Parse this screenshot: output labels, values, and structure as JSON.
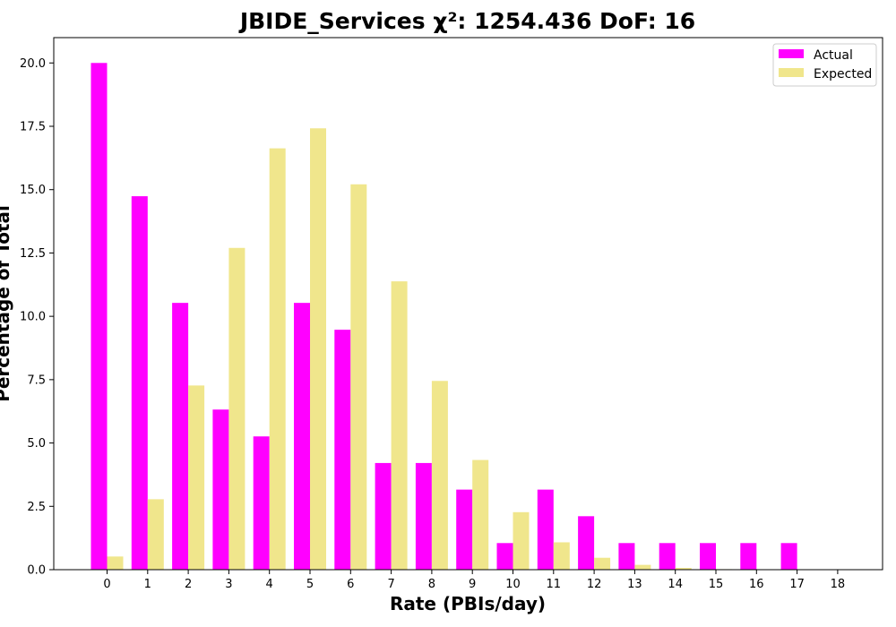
{
  "chart_data": {
    "type": "bar",
    "title": "JBIDE_Services χ²: 1254.436 DoF: 16",
    "xlabel": "Rate (PBIs/day)",
    "ylabel": "Percentage of Total",
    "categories": [
      "0",
      "1",
      "2",
      "3",
      "4",
      "5",
      "6",
      "7",
      "8",
      "9",
      "10",
      "11",
      "12",
      "13",
      "14",
      "15",
      "16",
      "17",
      "18"
    ],
    "series": [
      {
        "name": "Actual",
        "color": "#ff00ff",
        "values": [
          20.0,
          14.74,
          10.53,
          6.32,
          5.26,
          10.53,
          9.47,
          4.21,
          4.21,
          3.16,
          1.05,
          3.16,
          2.11,
          1.05,
          1.05,
          1.05,
          1.05,
          1.05,
          0
        ]
      },
      {
        "name": "Expected",
        "color": "#f0e68c",
        "values": [
          0.52,
          2.78,
          7.27,
          12.7,
          16.63,
          17.42,
          15.21,
          11.38,
          7.45,
          4.33,
          2.27,
          1.08,
          0.47,
          0.19,
          0.07,
          0.02,
          0.01,
          0.0,
          0.0
        ]
      }
    ],
    "ylim": [
      0,
      21
    ],
    "yticks": [
      "0.0",
      "2.5",
      "5.0",
      "7.5",
      "10.0",
      "12.5",
      "15.0",
      "17.5",
      "20.0"
    ],
    "grid": false,
    "legend": "top-right"
  }
}
